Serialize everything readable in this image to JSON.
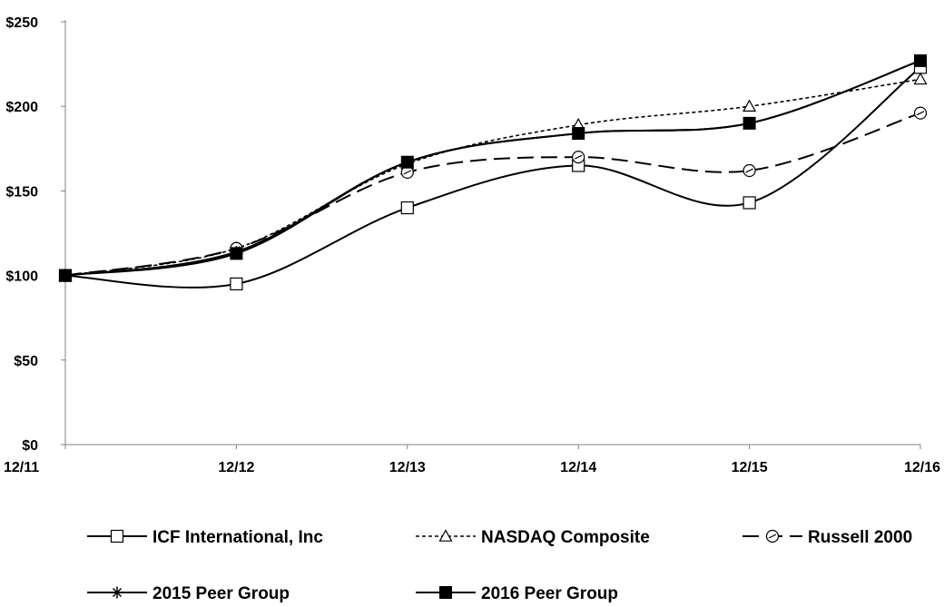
{
  "chart_data": {
    "type": "line",
    "x": [
      "12/11",
      "12/12",
      "12/13",
      "12/14",
      "12/15",
      "12/16"
    ],
    "y_ticks": [
      "$0",
      "$50",
      "$100",
      "$150",
      "$200",
      "$250"
    ],
    "ylim": [
      0,
      250
    ],
    "grid": false,
    "legend_position": "bottom",
    "series": [
      {
        "name": "ICF International, Inc",
        "marker": "square-open",
        "dash": "solid",
        "values": [
          100,
          95,
          140,
          165,
          143,
          223
        ]
      },
      {
        "name": "NASDAQ Composite",
        "marker": "triangle-open",
        "dash": "dotted",
        "values": [
          100,
          116,
          166,
          189,
          200,
          216
        ]
      },
      {
        "name": "Russell 2000",
        "marker": "circle-open",
        "dash": "dashed",
        "values": [
          100,
          116,
          161,
          170,
          162,
          196
        ]
      },
      {
        "name": "2015 Peer Group",
        "marker": "asterisk",
        "dash": "solid",
        "values": [
          100,
          114,
          167,
          184,
          190,
          227
        ]
      },
      {
        "name": "2016 Peer Group",
        "marker": "square-filled",
        "dash": "solid",
        "values": [
          100,
          113,
          167,
          184,
          190,
          227
        ]
      }
    ]
  }
}
